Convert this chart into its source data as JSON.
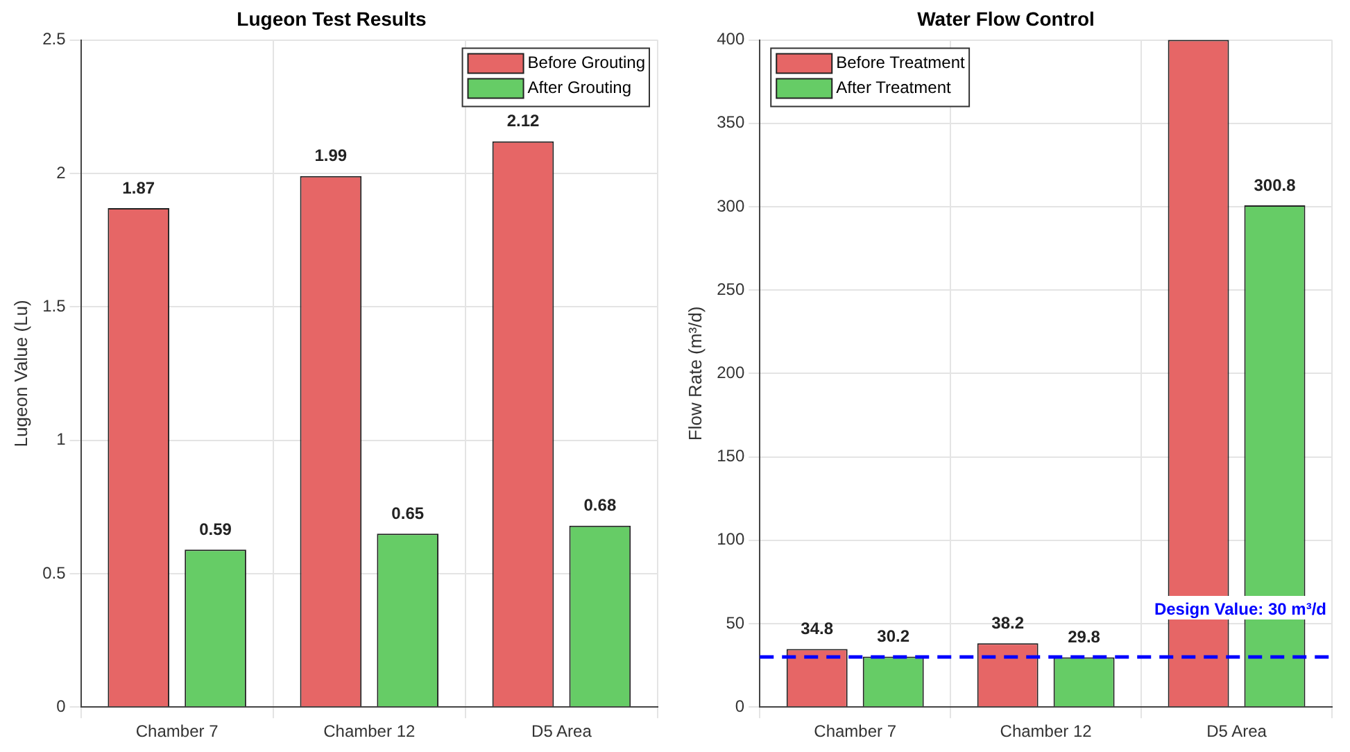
{
  "chart_data": [
    {
      "type": "bar",
      "title": "Lugeon Test Results",
      "ylabel": "Lugeon Value (Lu)",
      "categories": [
        "Chamber 7",
        "Chamber 12",
        "D5 Area"
      ],
      "series": [
        {
          "name": "Before Grouting",
          "color": "#e66666",
          "values": [
            1.87,
            1.99,
            2.12
          ]
        },
        {
          "name": "After Grouting",
          "color": "#66cc66",
          "values": [
            0.59,
            0.65,
            0.68
          ]
        }
      ],
      "ylim": [
        0,
        2.5
      ],
      "yticks": [
        0,
        0.5,
        1,
        1.5,
        2,
        2.5
      ],
      "grid": true,
      "legend": "top right",
      "data_labels": true
    },
    {
      "type": "bar",
      "title": "Water Flow Control",
      "ylabel": "Flow Rate (m³/d)",
      "categories": [
        "Chamber 7",
        "Chamber 12",
        "D5 Area"
      ],
      "series": [
        {
          "name": "Before Treatment",
          "color": "#e66666",
          "values": [
            34.8,
            38.2,
            400
          ],
          "value_labels": [
            "34.8",
            "38.2",
            null
          ]
        },
        {
          "name": "After Treatment",
          "color": "#66cc66",
          "values": [
            30.2,
            29.8,
            300.8
          ],
          "value_labels": [
            "30.2",
            "29.8",
            "300.8"
          ]
        }
      ],
      "ylim": [
        0,
        400
      ],
      "yticks": [
        0,
        50,
        100,
        150,
        200,
        250,
        300,
        350,
        400
      ],
      "grid": true,
      "legend": "top left",
      "ref_lines": [
        {
          "axis": "y",
          "value": 30,
          "label": "Design Value: 30 m³/d",
          "color": "#0000ff",
          "line_style": "dashed"
        }
      ]
    }
  ]
}
